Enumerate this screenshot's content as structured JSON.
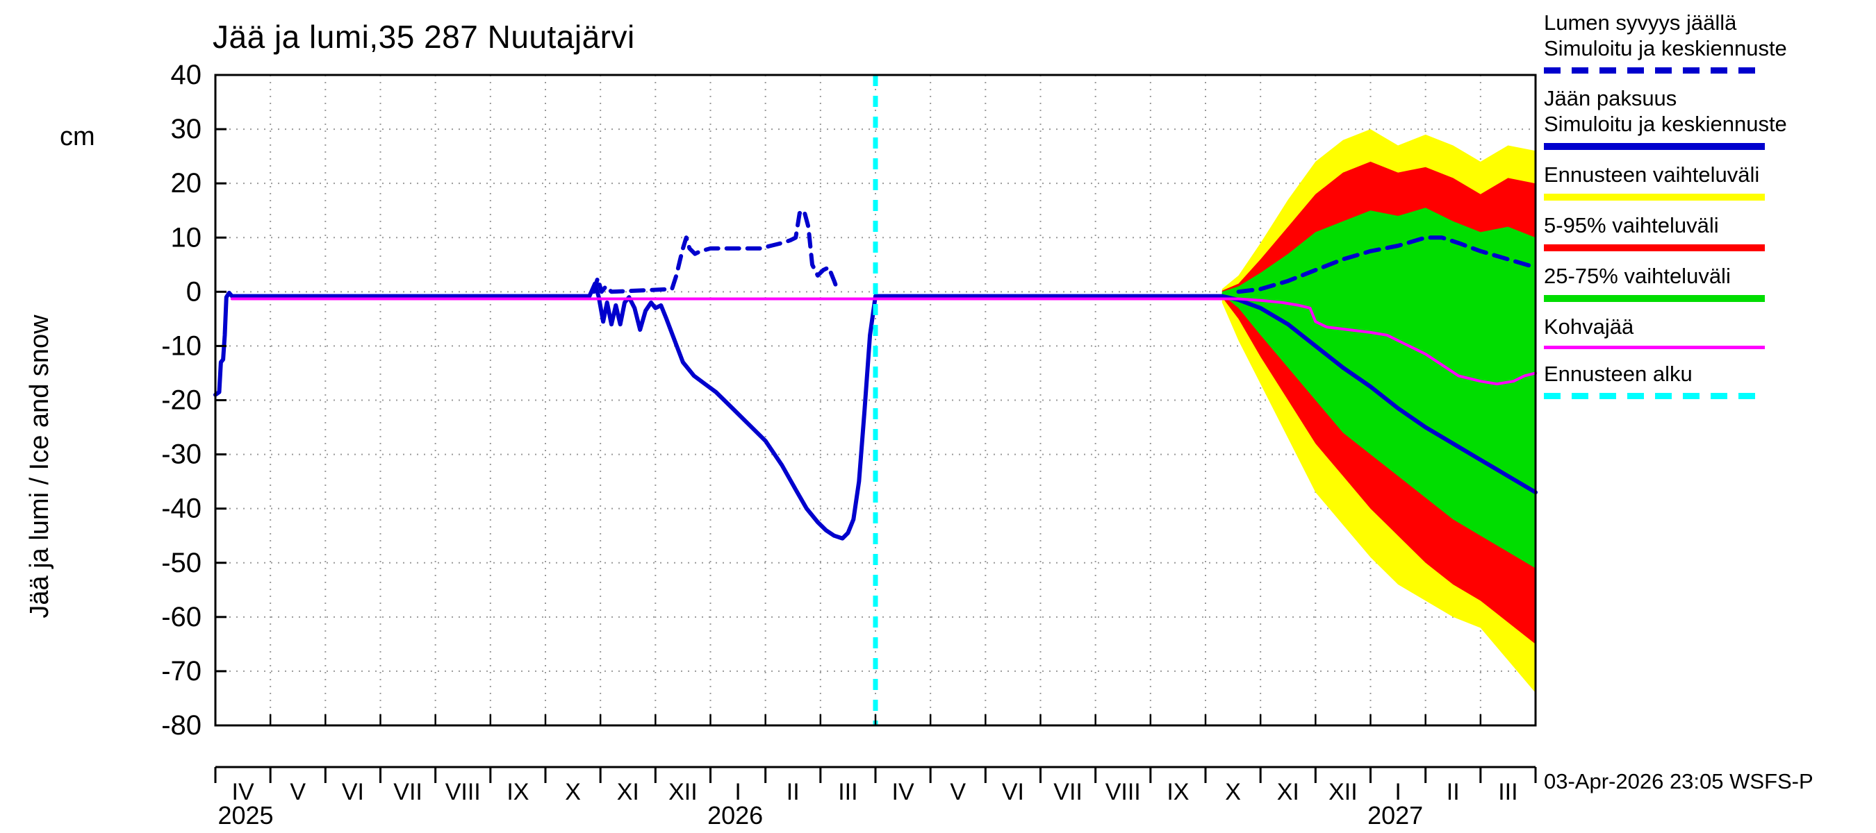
{
  "chart_data": {
    "type": "line",
    "title": "Jää ja lumi,35 287 Nuutajärvi",
    "ylabel": "Jää ja lumi / Ice and snow",
    "y_unit": "cm",
    "timestamp": "03-Apr-2026 23:05 WSFS-P",
    "ylim": [
      -80,
      40
    ],
    "yticks": [
      40,
      30,
      20,
      10,
      0,
      -10,
      -20,
      -30,
      -40,
      -50,
      -60,
      -70,
      -80
    ],
    "grid": true,
    "x_axis": {
      "month_labels": [
        "IV",
        "V",
        "VI",
        "VII",
        "VIII",
        "IX",
        "X",
        "XI",
        "XII",
        "I",
        "II",
        "III",
        "IV",
        "V",
        "VI",
        "VII",
        "VIII",
        "IX",
        "X",
        "XI",
        "XII",
        "I",
        "II",
        "III"
      ],
      "year_labels": [
        {
          "label": "2025",
          "month": 0.55
        },
        {
          "label": "2026",
          "month": 9.45
        },
        {
          "label": "2027",
          "month": 21.45
        }
      ]
    },
    "forecast_start_month": 12,
    "colors": {
      "simulated": "#0000cd",
      "range": "#ffff00",
      "p5_95": "#ff0000",
      "p25_75": "#00dd00",
      "kohvajaa": "#ff00ff",
      "forecast_start": "#00ffff",
      "grid": "#999999",
      "frame": "#000000"
    },
    "bands": [
      {
        "id": "forecast-range",
        "name": "Ennusteen vaihteluväli",
        "color": "#ffff00",
        "x": [
          18.3,
          18.6,
          19.0,
          19.5,
          20.0,
          20.5,
          21.0,
          21.5,
          22.0,
          22.5,
          23.0,
          23.5,
          24.0
        ],
        "upper": [
          0.5,
          3,
          9,
          17,
          24,
          28,
          30,
          27,
          29,
          27,
          24,
          27,
          26
        ],
        "lower": [
          -2,
          -9,
          -17,
          -27,
          -37,
          -43,
          -49,
          -54,
          -57,
          -60,
          -62,
          -68,
          -74
        ]
      },
      {
        "id": "p5-95",
        "name": "5-95% vaihteluväli",
        "color": "#ff0000",
        "x": [
          18.3,
          18.6,
          19.0,
          19.5,
          20.0,
          20.5,
          21.0,
          21.5,
          22.0,
          22.5,
          23.0,
          23.5,
          24.0
        ],
        "upper": [
          0.2,
          1.5,
          6,
          12,
          18,
          22,
          24,
          22,
          23,
          21,
          18,
          21,
          20
        ],
        "lower": [
          -1,
          -5,
          -12,
          -20,
          -28,
          -34,
          -40,
          -45,
          -50,
          -54,
          -57,
          -61,
          -65
        ]
      },
      {
        "id": "p25-75",
        "name": "25-75% vaihteluväli",
        "color": "#00dd00",
        "x": [
          18.3,
          18.6,
          19.0,
          19.5,
          20.0,
          20.5,
          21.0,
          21.5,
          22.0,
          22.5,
          23.0,
          23.5,
          24.0
        ],
        "upper": [
          0,
          1,
          3.5,
          7,
          11,
          13,
          15,
          14,
          15.5,
          13,
          11,
          12,
          10
        ],
        "lower": [
          -0.5,
          -3,
          -8,
          -14,
          -20,
          -26,
          -30,
          -34,
          -38,
          -42,
          -45,
          -48,
          -51
        ]
      }
    ],
    "lines": [
      {
        "id": "ice-simulated",
        "name": "Jään paksuus simuloitu",
        "color": "#0000cd",
        "width": 6,
        "dash": "",
        "x": [
          0,
          0.07,
          0.1,
          0.14,
          0.17,
          0.2,
          0.25,
          0.3,
          1,
          2,
          3,
          4,
          5,
          6,
          6.8,
          6.9,
          6.97,
          7.05,
          7.12,
          7.2,
          7.28,
          7.36,
          7.44,
          7.52,
          7.62,
          7.72,
          7.82,
          7.92,
          8.0,
          8.1,
          8.2,
          8.35,
          8.5,
          8.7,
          8.9,
          9.1,
          9.4,
          9.7,
          10.0,
          10.3,
          10.55,
          10.75,
          10.95,
          11.1,
          11.25,
          11.4,
          11.5,
          11.6,
          11.7,
          11.8,
          11.9,
          12.0
        ],
        "v": [
          -19,
          -18.5,
          -13,
          -12.5,
          -8,
          -1,
          -0.2,
          -0.8,
          -0.8,
          -0.8,
          -0.8,
          -0.8,
          -0.8,
          -0.8,
          -0.8,
          1.5,
          -1,
          -5.5,
          -2,
          -6,
          -2.5,
          -6,
          -2,
          -1,
          -3,
          -7,
          -3.5,
          -2,
          -3,
          -2.5,
          -5,
          -9,
          -13,
          -15.5,
          -17,
          -18.5,
          -21.5,
          -24.5,
          -27.5,
          -32,
          -36.5,
          -40,
          -42.5,
          -44,
          -45,
          -45.5,
          -44.5,
          -42,
          -35,
          -22,
          -8,
          -0.8
        ]
      },
      {
        "id": "ice-forecast-median",
        "name": "Jään paksuus keskiennuste",
        "color": "#0000cd",
        "width": 6,
        "dash": "",
        "x": [
          12.0,
          18.3,
          18.6,
          19.0,
          19.5,
          20.0,
          20.5,
          21.0,
          21.5,
          22.0,
          22.5,
          23.0,
          23.5,
          24.0
        ],
        "v": [
          -0.8,
          -0.8,
          -1.5,
          -3.0,
          -6.0,
          -10.0,
          -14.0,
          -17.5,
          -21.5,
          -25.0,
          -28.0,
          -31.0,
          -34.0,
          -37.0
        ]
      },
      {
        "id": "kohvajaa",
        "name": "Kohvajää",
        "color": "#ff00ff",
        "width": 4,
        "dash": "",
        "x": [
          0.3,
          6.0,
          9.0,
          12.0,
          18.6,
          19.0,
          19.4,
          19.7,
          19.9,
          20.0,
          20.2,
          20.6,
          21.0,
          21.3,
          21.6,
          22.0,
          22.3,
          22.6,
          23.0,
          23.3,
          23.6,
          23.8,
          24.0
        ],
        "v": [
          -1.3,
          -1.3,
          -1.3,
          -1.3,
          -1.3,
          -1.6,
          -2.0,
          -2.5,
          -3.0,
          -5.5,
          -6.5,
          -7.0,
          -7.5,
          -8.0,
          -9.5,
          -11.5,
          -13.5,
          -15.5,
          -16.5,
          -17.0,
          -16.5,
          -15.5,
          -15.0
        ]
      },
      {
        "id": "snow-simulated",
        "name": "Lumen syvyys jäällä simuloitu",
        "color": "#0000cd",
        "width": 6,
        "dash": "18 12",
        "x": [
          6.88,
          6.95,
          7.02,
          7.1,
          7.2,
          8.3,
          8.38,
          8.45,
          8.5,
          8.56,
          8.62,
          8.72,
          8.82,
          9.0,
          9.3,
          9.6,
          9.9,
          10.1,
          10.3,
          10.45,
          10.55,
          10.62,
          10.7,
          10.78,
          10.85,
          10.95,
          11.05,
          11.15,
          11.25,
          11.32
        ],
        "v": [
          0,
          2.5,
          0,
          1,
          0,
          0.5,
          3,
          6,
          8,
          10,
          8,
          7,
          7.5,
          8,
          8,
          8,
          8,
          8.5,
          9,
          9.5,
          10,
          14.5,
          15,
          12,
          5,
          3,
          4,
          4.5,
          2,
          0
        ]
      },
      {
        "id": "snow-forecast-median",
        "name": "Lumen syvyys jäällä keskiennuste",
        "color": "#0000cd",
        "width": 6,
        "dash": "20 12",
        "x": [
          18.6,
          19.0,
          19.5,
          20.0,
          20.5,
          21.0,
          21.5,
          22.0,
          22.3,
          22.6,
          23.0,
          23.5,
          24.0
        ],
        "v": [
          0,
          0.5,
          2.0,
          4.0,
          6.0,
          7.5,
          8.5,
          10.0,
          10.0,
          9.0,
          7.5,
          6.0,
          4.5
        ]
      }
    ],
    "legend": {
      "items": [
        {
          "id": "snow-simulated",
          "lines": [
            "Lumen syvyys jäällä",
            "Simuloitu ja keskiennuste"
          ],
          "color": "#0000cd",
          "dash": true,
          "thickness": 9
        },
        {
          "id": "ice-simulated",
          "lines": [
            "Jään paksuus",
            "Simuloitu ja keskiennuste"
          ],
          "color": "#0000cd",
          "dash": false,
          "thickness": 10
        },
        {
          "id": "forecast-range",
          "lines": [
            "Ennusteen vaihteluväli"
          ],
          "color": "#ffff00",
          "dash": false,
          "thickness": 10
        },
        {
          "id": "p5-95",
          "lines": [
            "5-95% vaihteluväli"
          ],
          "color": "#ff0000",
          "dash": false,
          "thickness": 10
        },
        {
          "id": "p25-75",
          "lines": [
            "25-75% vaihteluväli"
          ],
          "color": "#00dd00",
          "dash": false,
          "thickness": 10
        },
        {
          "id": "kohvajaa",
          "lines": [
            "Kohvajää"
          ],
          "color": "#ff00ff",
          "dash": false,
          "thickness": 5
        },
        {
          "id": "forecast-start",
          "lines": [
            "Ennusteen alku"
          ],
          "color": "#00ffff",
          "dash": true,
          "thickness": 9
        }
      ]
    }
  }
}
